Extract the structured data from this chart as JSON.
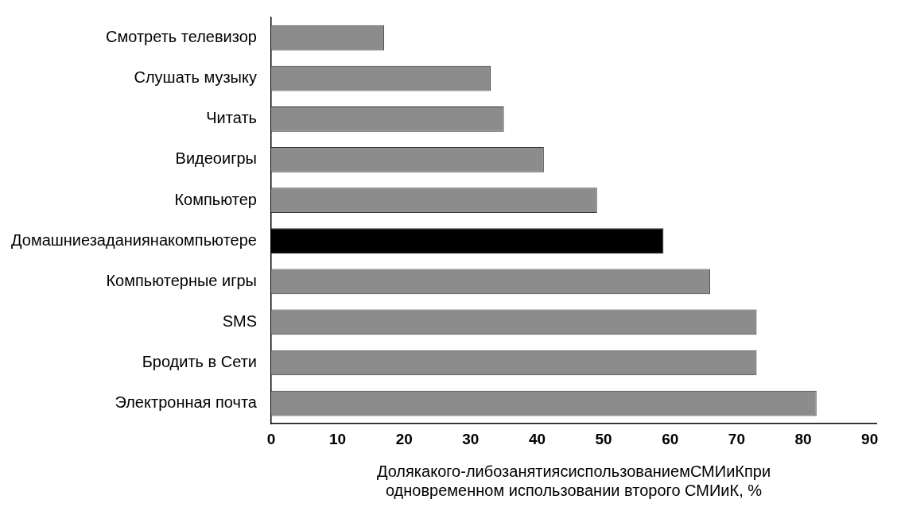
{
  "chart_data": {
    "type": "bar",
    "orientation": "horizontal",
    "categories": [
      "Смотреть телевизор",
      "Слушать музыку",
      "Читать",
      "Видеоигры",
      "Компьютер",
      "Домашниезаданиянакомпьютере",
      "Компьютерные игры",
      "SMS",
      "Бродить в Сети",
      "Электронная почта"
    ],
    "values": [
      17,
      33,
      35,
      41,
      49,
      59,
      66,
      73,
      73,
      82
    ],
    "colors": [
      "#8c8c8c",
      "#8c8c8c",
      "#8c8c8c",
      "#8c8c8c",
      "#8c8c8c",
      "#000000",
      "#8c8c8c",
      "#8c8c8c",
      "#8c8c8c",
      "#8c8c8c"
    ],
    "xlim": [
      0,
      91
    ],
    "xticks": [
      0,
      10,
      20,
      30,
      40,
      50,
      60,
      70,
      80,
      90
    ],
    "xlabel": "Долякакого-либозанятиясиспользованиемСМИиКпри\nодновременном использовании второго СМИиК, %",
    "grid": false,
    "legend": false
  }
}
